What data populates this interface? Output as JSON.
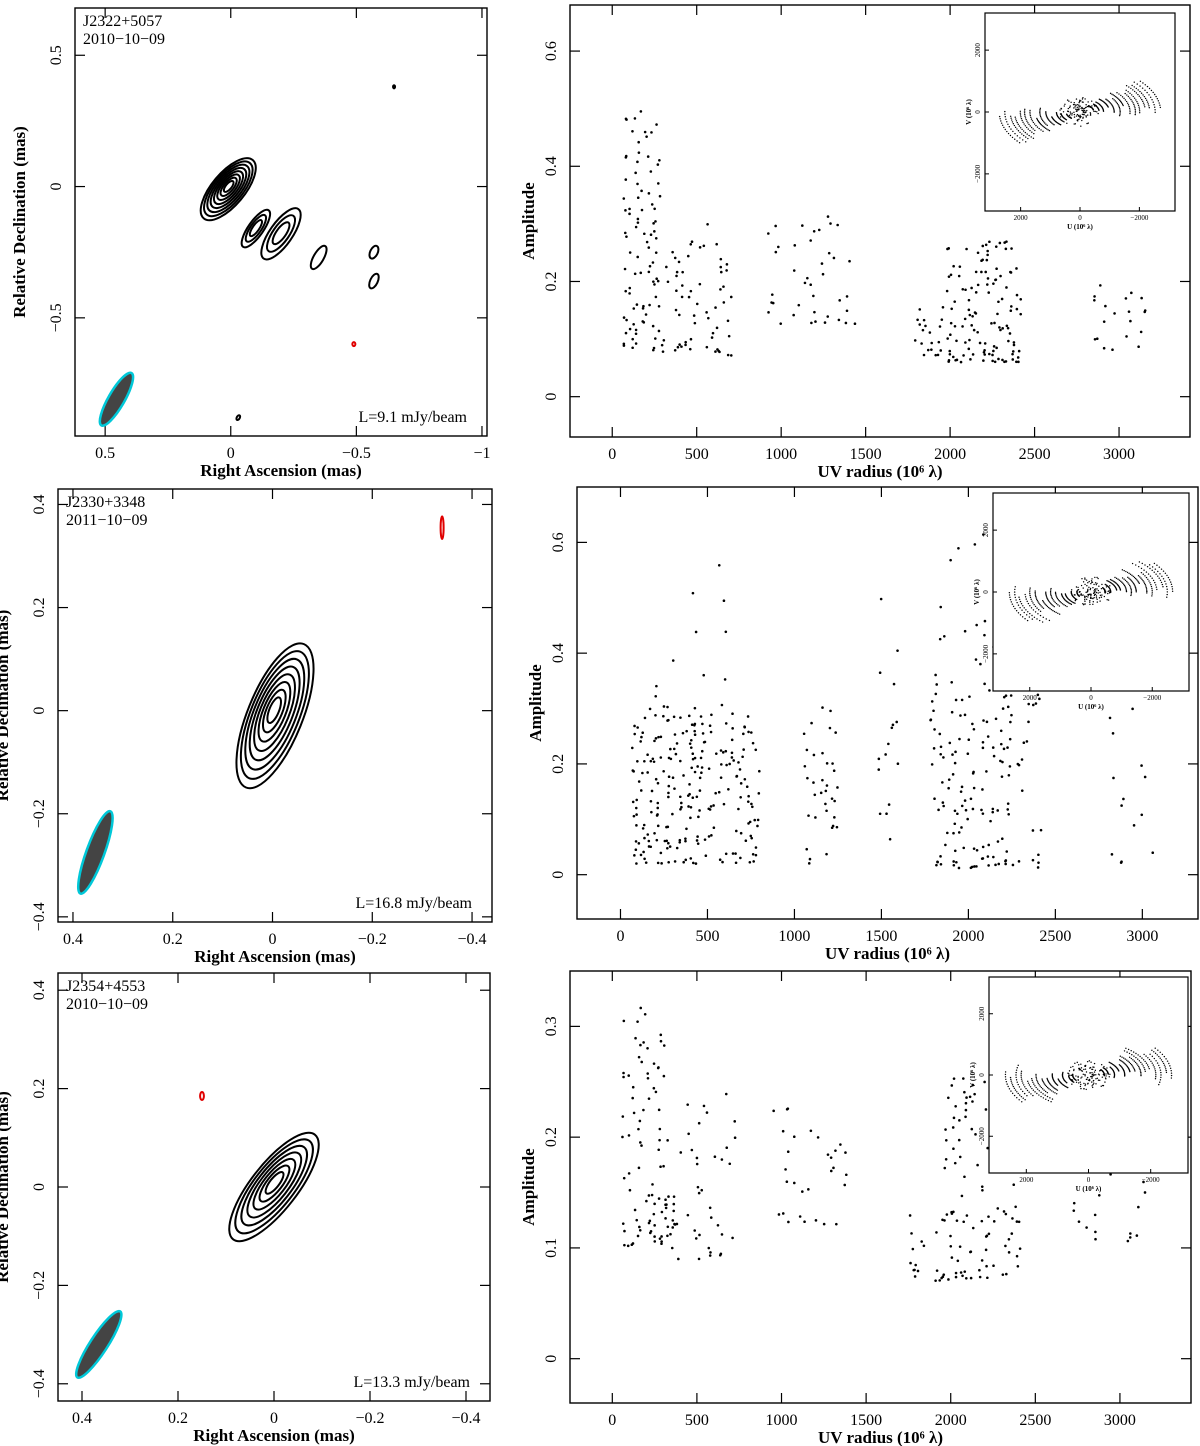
{
  "chart_data": [
    {
      "type": "contour",
      "source": "J2322+5057",
      "date": "2010−10−09",
      "level_label": "L=9.1 mJy/beam",
      "xlabel": "Right Ascension  (mas)",
      "ylabel": "Relative Declination  (mas)",
      "xlim": [
        0.62,
        -1.02
      ],
      "ylim": [
        -0.95,
        0.68
      ],
      "xticks": [
        {
          "v": 0.5,
          "t": "0.5"
        },
        {
          "v": 0,
          "t": "0"
        },
        {
          "v": -0.5,
          "t": "−0.5"
        },
        {
          "v": -1,
          "t": "−1"
        }
      ],
      "yticks": [
        {
          "v": 0.5,
          "t": "0.5"
        },
        {
          "v": 0,
          "t": "0"
        },
        {
          "v": -0.5,
          "t": "−0.5"
        }
      ],
      "beam": {
        "x": 0.455,
        "y": -0.81,
        "major": 0.115,
        "minor": 0.032,
        "pa_deg": 30
      },
      "components": [
        {
          "x": 0.01,
          "y": -0.01,
          "rx": 0.065,
          "ry": 0.145,
          "pa": -40,
          "levels": 8
        },
        {
          "x": -0.1,
          "y": -0.16,
          "rx": 0.03,
          "ry": 0.085,
          "pa": -35,
          "levels": 3
        },
        {
          "x": -0.2,
          "y": -0.18,
          "rx": 0.045,
          "ry": 0.115,
          "pa": -35,
          "levels": 3
        },
        {
          "x": -0.35,
          "y": -0.27,
          "rx": 0.02,
          "ry": 0.05,
          "pa": -30,
          "levels": 1
        },
        {
          "x": -0.57,
          "y": -0.25,
          "rx": 0.015,
          "ry": 0.026,
          "pa": -25,
          "levels": 1
        },
        {
          "x": -0.57,
          "y": -0.36,
          "rx": 0.015,
          "ry": 0.03,
          "pa": -25,
          "levels": 1
        },
        {
          "x": -0.03,
          "y": -0.88,
          "rx": 0.006,
          "ry": 0.01,
          "pa": -30,
          "levels": 1
        },
        {
          "x": -0.65,
          "y": 0.38,
          "rx": 0.004,
          "ry": 0.006,
          "pa": 0,
          "levels": 1
        }
      ],
      "negative": [
        {
          "x": -0.49,
          "y": -0.6,
          "rx": 0.004,
          "ry": 0.006
        }
      ]
    },
    {
      "type": "scatter",
      "xlabel": "UV radius  (10⁶ λ)",
      "ylabel": "Amplitude",
      "xlim": [
        -250,
        3420
      ],
      "ylim": [
        -0.07,
        0.68
      ],
      "xticks": [
        0,
        500,
        1000,
        1500,
        2000,
        2500,
        3000
      ],
      "yticks": [
        {
          "v": 0,
          "t": "0"
        },
        {
          "v": 0.2,
          "t": "0.2"
        },
        {
          "v": 0.4,
          "t": "0.4"
        },
        {
          "v": 0.6,
          "t": "0.6"
        }
      ],
      "clusters": [
        {
          "x": [
            60,
            300
          ],
          "y": [
            0.08,
            0.5
          ],
          "n": 90,
          "seed": 11
        },
        {
          "x": [
            300,
            720
          ],
          "y": [
            0.07,
            0.3
          ],
          "n": 60,
          "seed": 12
        },
        {
          "x": [
            920,
            1450
          ],
          "y": [
            0.12,
            0.32
          ],
          "n": 40,
          "seed": 13
        },
        {
          "x": [
            1780,
            1960
          ],
          "y": [
            0.07,
            0.16
          ],
          "n": 20,
          "seed": 14
        },
        {
          "x": [
            1980,
            2420
          ],
          "y": [
            0.06,
            0.27
          ],
          "n": 120,
          "seed": 15
        },
        {
          "x": [
            2830,
            3160
          ],
          "y": [
            0.08,
            0.2
          ],
          "n": 20,
          "seed": 16
        }
      ],
      "inset": {
        "xlabel": "U (10⁶ λ)",
        "ylabel": "V (10⁶ λ)",
        "xticks": [
          {
            "v": 2000,
            "t": "2000"
          },
          {
            "v": 0,
            "t": "0"
          },
          {
            "v": -2000,
            "t": "−2000"
          }
        ],
        "yticks": [
          {
            "v": 2000,
            "t": "2000"
          },
          {
            "v": 0,
            "t": "0"
          },
          {
            "v": -2000,
            "t": "−2000"
          }
        ]
      }
    },
    {
      "type": "contour",
      "source": "J2330+3348",
      "date": "2011−10−09",
      "level_label": "L=16.8 mJy/beam",
      "xlabel": "Right Ascension  (mas)",
      "ylabel": "Relative Declination  (mas)",
      "xlim": [
        0.43,
        -0.44
      ],
      "ylim": [
        -0.41,
        0.43
      ],
      "xticks": [
        {
          "v": 0.4,
          "t": "0.4"
        },
        {
          "v": 0.2,
          "t": "0.2"
        },
        {
          "v": 0,
          "t": "0"
        },
        {
          "v": -0.2,
          "t": "−0.2"
        },
        {
          "v": -0.4,
          "t": "−0.4"
        }
      ],
      "yticks": [
        {
          "v": 0.4,
          "t": "0.4"
        },
        {
          "v": 0.2,
          "t": "0.2"
        },
        {
          "v": 0,
          "t": "0"
        },
        {
          "v": -0.2,
          "t": "−0.2"
        },
        {
          "v": -0.4,
          "t": "−0.4"
        }
      ],
      "beam": {
        "x": 0.355,
        "y": -0.275,
        "major": 0.085,
        "minor": 0.018,
        "pa_deg": 20
      },
      "components": [
        {
          "x": -0.005,
          "y": -0.01,
          "rx": 0.055,
          "ry": 0.15,
          "pa": -22,
          "levels": 8
        }
      ],
      "negative": [
        {
          "x": -0.34,
          "y": 0.355,
          "rx": 0.003,
          "ry": 0.022
        }
      ]
    },
    {
      "type": "scatter",
      "xlabel": "UV radius  (10⁶ λ)",
      "ylabel": "Amplitude",
      "xlim": [
        -250,
        3320
      ],
      "ylim": [
        -0.08,
        0.7
      ],
      "xticks": [
        0,
        500,
        1000,
        1500,
        2000,
        2500,
        3000
      ],
      "yticks": [
        {
          "v": 0,
          "t": "0"
        },
        {
          "v": 0.2,
          "t": "0.2"
        },
        {
          "v": 0.4,
          "t": "0.4"
        },
        {
          "v": 0.6,
          "t": "0.6"
        }
      ],
      "clusters": [
        {
          "x": [
            60,
            800
          ],
          "y": [
            0.02,
            0.3
          ],
          "n": 230,
          "seed": 21
        },
        {
          "x": [
            200,
            700
          ],
          "y": [
            0.3,
            0.56
          ],
          "n": 14,
          "seed": 22
        },
        {
          "x": [
            1050,
            1250
          ],
          "y": [
            0.02,
            0.32
          ],
          "n": 35,
          "seed": 23
        },
        {
          "x": [
            1480,
            1600
          ],
          "y": [
            0.05,
            0.6
          ],
          "n": 16,
          "seed": 24
        },
        {
          "x": [
            1780,
            2420
          ],
          "y": [
            0.01,
            0.35
          ],
          "n": 150,
          "seed": 25
        },
        {
          "x": [
            1800,
            2350
          ],
          "y": [
            0.35,
            0.65
          ],
          "n": 20,
          "seed": 26
        },
        {
          "x": [
            2800,
            3080
          ],
          "y": [
            0.02,
            0.3
          ],
          "n": 14,
          "seed": 27
        }
      ],
      "inset": {
        "xlabel": "U (10⁶ λ)",
        "ylabel": "V (10⁶ λ)",
        "xticks": [
          {
            "v": 2000,
            "t": "2000"
          },
          {
            "v": 0,
            "t": "0"
          },
          {
            "v": -2000,
            "t": "−2000"
          }
        ],
        "yticks": [
          {
            "v": 2000,
            "t": "2000"
          },
          {
            "v": 0,
            "t": "0"
          },
          {
            "v": -2000,
            "t": "−2000"
          }
        ]
      }
    },
    {
      "type": "contour",
      "source": "J2354+4553",
      "date": "2010−10−09",
      "level_label": "L=13.3 mJy/beam",
      "xlabel": "Right Ascension  (mas)",
      "ylabel": "Relative Declination  (mas)",
      "xlim": [
        0.45,
        -0.45
      ],
      "ylim": [
        -0.435,
        0.435
      ],
      "xticks": [
        {
          "v": 0.4,
          "t": "0.4"
        },
        {
          "v": 0.2,
          "t": "0.2"
        },
        {
          "v": 0,
          "t": "0"
        },
        {
          "v": -0.2,
          "t": "−0.2"
        },
        {
          "v": -0.4,
          "t": "−0.4"
        }
      ],
      "yticks": [
        {
          "v": 0.4,
          "t": "0.4"
        },
        {
          "v": 0.2,
          "t": "0.2"
        },
        {
          "v": 0,
          "t": "0"
        },
        {
          "v": -0.2,
          "t": "−0.2"
        },
        {
          "v": -0.4,
          "t": "−0.4"
        }
      ],
      "beam": {
        "x": 0.365,
        "y": -0.32,
        "major": 0.08,
        "minor": 0.018,
        "pa_deg": 33
      },
      "components": [
        {
          "x": 0.0,
          "y": 0.0,
          "rx": 0.048,
          "ry": 0.135,
          "pa": -38,
          "levels": 7
        }
      ],
      "negative": [
        {
          "x": 0.15,
          "y": 0.185,
          "rx": 0.004,
          "ry": 0.008
        }
      ]
    },
    {
      "type": "scatter",
      "xlabel": "UV radius  (10⁶ λ)",
      "ylabel": "Amplitude",
      "xlim": [
        -250,
        3420
      ],
      "ylim": [
        -0.04,
        0.35
      ],
      "xticks": [
        0,
        500,
        1000,
        1500,
        2000,
        2500,
        3000
      ],
      "yticks": [
        {
          "v": 0,
          "t": "0"
        },
        {
          "v": 0.1,
          "t": "0.1"
        },
        {
          "v": 0.2,
          "t": "0.2"
        },
        {
          "v": 0.3,
          "t": "0.3"
        }
      ],
      "clusters": [
        {
          "x": [
            60,
            320
          ],
          "y": [
            0.1,
            0.32
          ],
          "n": 80,
          "seed": 31
        },
        {
          "x": [
            320,
            740
          ],
          "y": [
            0.09,
            0.24
          ],
          "n": 50,
          "seed": 32
        },
        {
          "x": [
            940,
            1400
          ],
          "y": [
            0.12,
            0.23
          ],
          "n": 30,
          "seed": 33
        },
        {
          "x": [
            1750,
            1950
          ],
          "y": [
            0.07,
            0.13
          ],
          "n": 16,
          "seed": 34
        },
        {
          "x": [
            1950,
            2420
          ],
          "y": [
            0.07,
            0.27
          ],
          "n": 110,
          "seed": 35
        },
        {
          "x": [
            2700,
            3150
          ],
          "y": [
            0.1,
            0.2
          ],
          "n": 20,
          "seed": 36
        }
      ],
      "inset": {
        "xlabel": "U (10⁶ λ)",
        "ylabel": "V (10⁶ λ)",
        "xticks": [
          {
            "v": 2000,
            "t": "2000"
          },
          {
            "v": 0,
            "t": "0"
          },
          {
            "v": -2000,
            "t": "−2000"
          }
        ],
        "yticks": [
          {
            "v": 2000,
            "t": "2000"
          },
          {
            "v": 0,
            "t": "0"
          },
          {
            "v": -2000,
            "t": "−2000"
          }
        ]
      }
    }
  ],
  "colors": {
    "beam_fill": "#444444",
    "beam_edge": "#00c8d8",
    "negative_contour": "#e00000",
    "ink": "#000000"
  }
}
